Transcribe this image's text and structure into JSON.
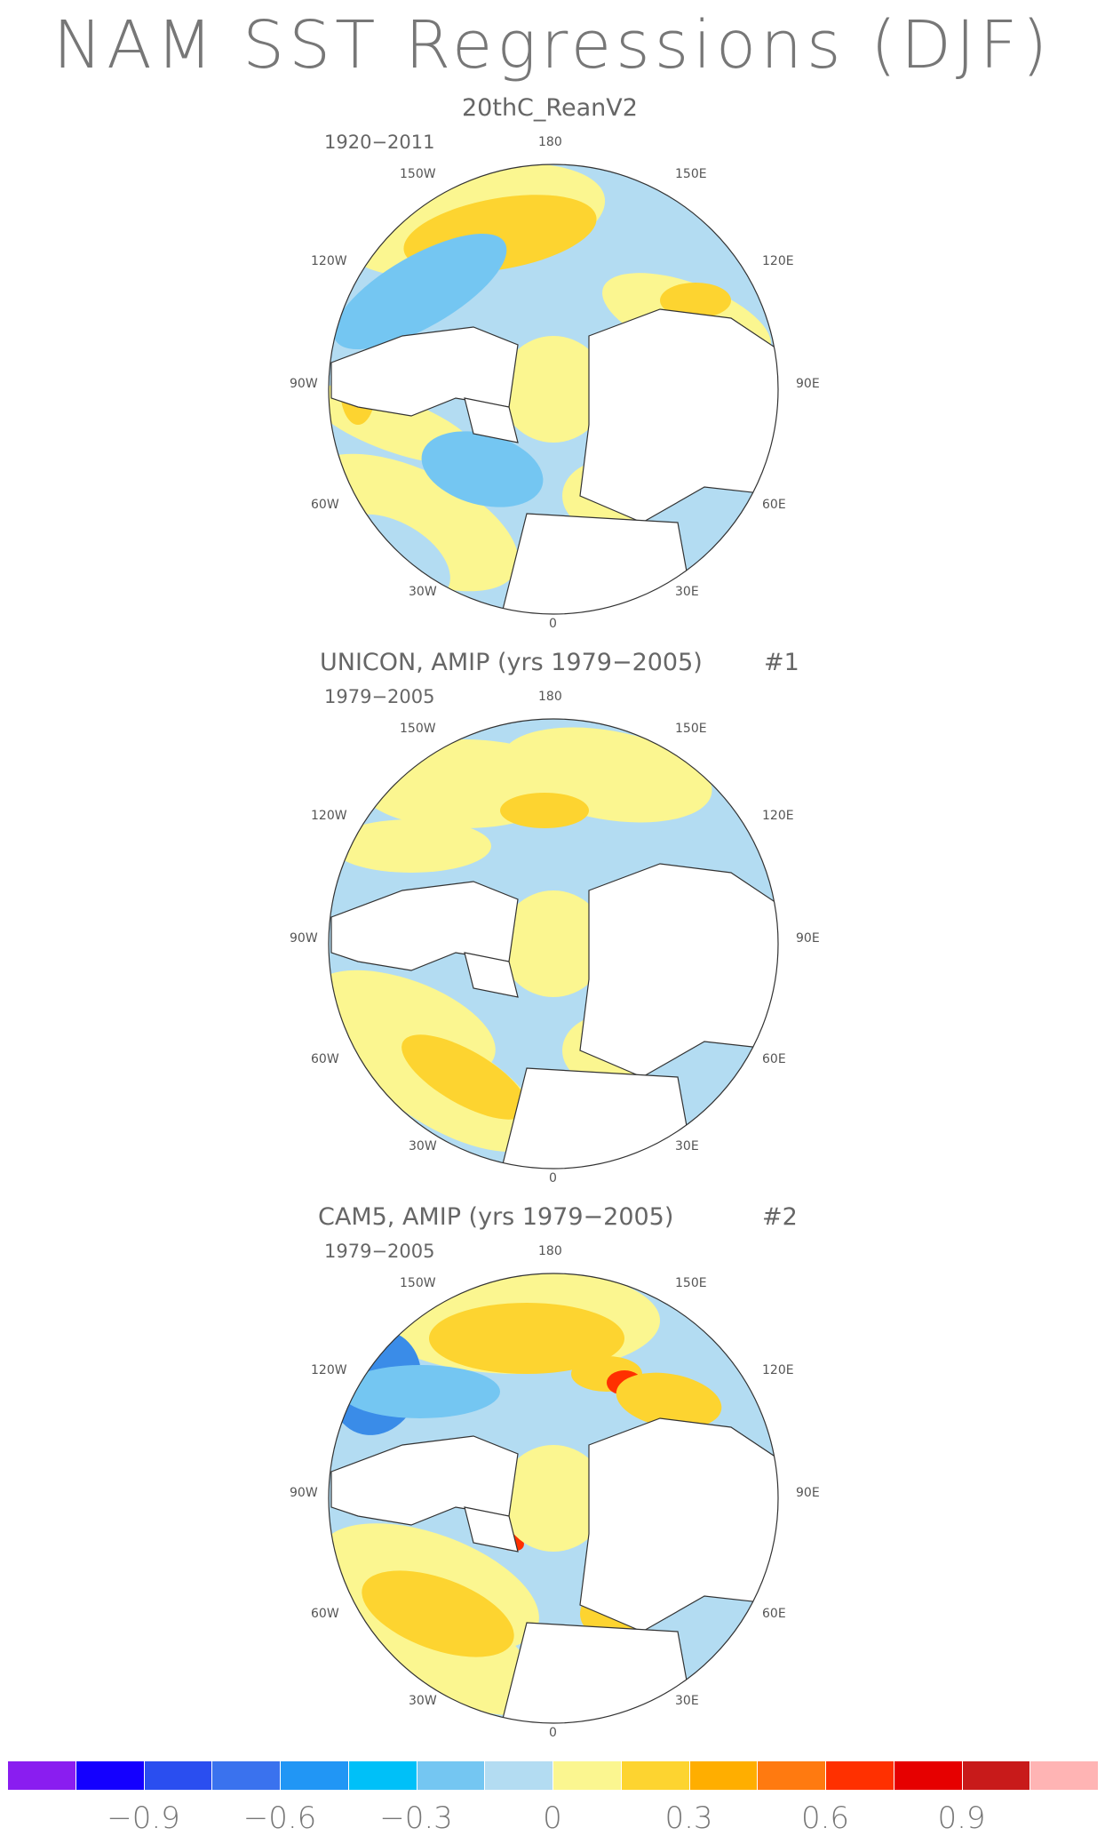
{
  "title": "NAM SST Regressions (DJF)",
  "panels": [
    {
      "title": "20thC_ReanV2",
      "number": "",
      "period": "1920−2011",
      "labels": {
        "top": "180",
        "bottom": "0",
        "w150": "150W",
        "e150": "150E",
        "w120": "120W",
        "e120": "120E",
        "w90": "90W",
        "e90": "90E",
        "w60": "60W",
        "e60": "60E",
        "w30": "30W",
        "e30": "30E"
      }
    },
    {
      "title": "UNICON, AMIP (yrs 1979−2005)",
      "number": "#1",
      "period": "1979−2005",
      "labels": {
        "top": "180",
        "bottom": "0",
        "w150": "150W",
        "e150": "150E",
        "w120": "120W",
        "e120": "120E",
        "w90": "90W",
        "e90": "90E",
        "w60": "60W",
        "e60": "60E",
        "w30": "30W",
        "e30": "30E"
      }
    },
    {
      "title": "CAM5, AMIP (yrs 1979−2005)",
      "number": "#2",
      "period": "1979−2005",
      "labels": {
        "top": "180",
        "bottom": "0",
        "w150": "150W",
        "e150": "150E",
        "w120": "120W",
        "e120": "120E",
        "w90": "90W",
        "e90": "90E",
        "w60": "60W",
        "e60": "60E",
        "w30": "30W",
        "e30": "30E"
      }
    }
  ],
  "colorbar": {
    "colors": [
      "#8a1df0",
      "#1400ff",
      "#2a4ef0",
      "#3a72ee",
      "#2196f5",
      "#00c0f8",
      "#74c6f2",
      "#b3dcf2",
      "#fbf690",
      "#fdd430",
      "#ffae00",
      "#ff7a10",
      "#ff3000",
      "#e60000",
      "#c81a1a",
      "#ffb4b4"
    ],
    "tick_labels": [
      "−0.9",
      "−0.6",
      "−0.3",
      "0",
      "0.3",
      "0.6",
      "0.9"
    ]
  },
  "colors": {
    "neg_light": "#b3dcf2",
    "neg_mid": "#74c6f2",
    "neg_strong": "#3a8ce8",
    "pos_light": "#fbf690",
    "pos_mid": "#fdd430",
    "pos_strong": "#ffae00",
    "pos_red": "#ff3000",
    "land": "#ffffff",
    "coast": "#333333"
  }
}
